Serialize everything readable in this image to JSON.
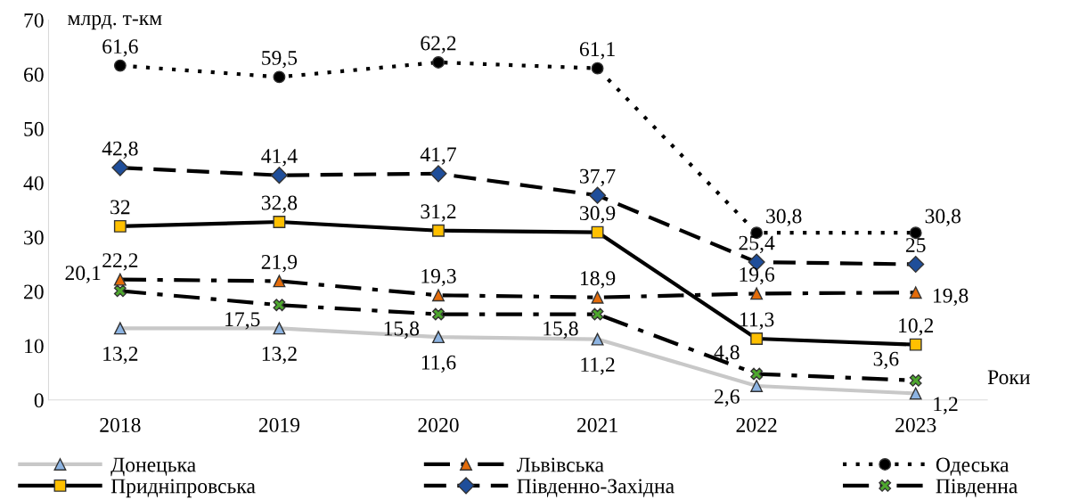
{
  "chart_data": {
    "type": "line",
    "ylabel": "млрд. т-км",
    "xlabel": "Роки",
    "categories": [
      "2018",
      "2019",
      "2020",
      "2021",
      "2022",
      "2023"
    ],
    "ylim": [
      0,
      70
    ],
    "yticks": [
      0,
      10,
      20,
      30,
      40,
      50,
      60,
      70
    ],
    "grid": false,
    "legend": "bottom",
    "series": [
      {
        "name": "Донецька",
        "color": "#c8c8c8",
        "colors": [
          "#8db4e2",
          "#8db4e2",
          "#8db4e2",
          "#8db4e2",
          "#8db4e2",
          "#8db4e2"
        ],
        "marker": "triangle",
        "line_style": "solid",
        "values": [
          13.2,
          13.2,
          11.6,
          11.2,
          2.6,
          1.2
        ],
        "value_labels": [
          "13,2",
          "13,2",
          "11,6",
          "11,2",
          "2,6",
          "1,2"
        ]
      },
      {
        "name": "Львівська",
        "color": "#000000",
        "colors": [
          "#e46c0a",
          "#e46c0a",
          "#e46c0a",
          "#e46c0a",
          "#e46c0a",
          "#e46c0a"
        ],
        "marker": "triangle",
        "line_style": "dashdot",
        "values": [
          22.2,
          21.9,
          19.3,
          18.9,
          19.6,
          19.8
        ],
        "value_labels": [
          "22,2",
          "21,9",
          "19,3",
          "18,9",
          "19,6",
          "19,8"
        ]
      },
      {
        "name": "Одеська",
        "color": "#000000",
        "colors": [
          "#000000",
          "#000000",
          "#000000",
          "#000000",
          "#000000",
          "#000000"
        ],
        "marker": "circle",
        "line_style": "dotted",
        "values": [
          61.6,
          59.5,
          62.2,
          61.1,
          30.8,
          30.8
        ],
        "value_labels": [
          "61,6",
          "59,5",
          "62,2",
          "61,1",
          "30,8",
          "30,8"
        ]
      },
      {
        "name": "Придніпровська",
        "color": "#000000",
        "colors": [
          "#ffc000",
          "#ffc000",
          "#ffc000",
          "#ffc000",
          "#ffc000",
          "#ffc000"
        ],
        "marker": "square",
        "line_style": "solid",
        "values": [
          32,
          32.8,
          31.2,
          30.9,
          11.3,
          10.2
        ],
        "value_labels": [
          "32",
          "32,8",
          "31,2",
          "30,9",
          "11,3",
          "10,2"
        ]
      },
      {
        "name": "Південно-Західна",
        "color": "#000000",
        "colors": [
          "#1f4e9a",
          "#1f4e9a",
          "#1f4e9a",
          "#1f4e9a",
          "#1f4e9a",
          "#1f4e9a"
        ],
        "marker": "diamond",
        "line_style": "dashed",
        "values": [
          42.8,
          41.4,
          41.7,
          37.7,
          25.4,
          25
        ],
        "value_labels": [
          "42,8",
          "41,4",
          "41,7",
          "37,7",
          "25,4",
          "25"
        ]
      },
      {
        "name": "Південна",
        "color": "#000000",
        "colors": [
          "#4ea72e",
          "#4ea72e",
          "#4ea72e",
          "#4ea72e",
          "#4ea72e",
          "#4ea72e"
        ],
        "marker": "cross",
        "line_style": "dashdot",
        "values": [
          20.1,
          17.5,
          15.8,
          15.8,
          4.8,
          3.6
        ],
        "value_labels": [
          "20,1",
          "17,5",
          "15,8",
          "15,8",
          "4,8",
          "3,6"
        ]
      }
    ]
  }
}
